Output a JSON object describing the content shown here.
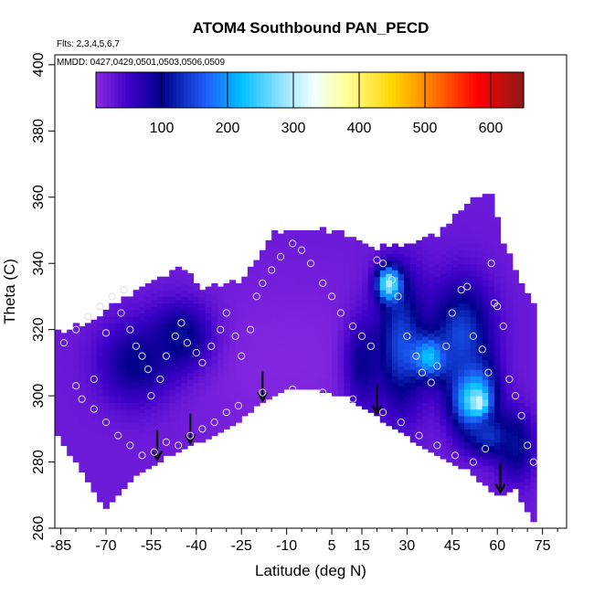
{
  "chart_data": {
    "type": "heatmap",
    "title": "ATOM4 Southbound PAN_PECD",
    "subtitle_lines": [
      "Flts: 2,3,4,5,6,7",
      "MMDD: 0427,0429,0501,0503,0506,0509"
    ],
    "xlabel": "Latitude (deg N)",
    "ylabel": "Theta (C)",
    "xlim": [
      -87,
      83
    ],
    "ylim": [
      260,
      403
    ],
    "x_ticks": [
      -85,
      -70,
      -55,
      -40,
      -25,
      -10,
      5,
      15,
      30,
      45,
      60,
      75
    ],
    "x_tick_labels": [
      "-85",
      "-70",
      "-55",
      "-40",
      "-25",
      "-10",
      "5",
      "15",
      "30",
      "45",
      "60",
      "75"
    ],
    "x_minor_ticks": [
      -80,
      -75,
      -65,
      -60,
      -50,
      -45,
      -35,
      -30,
      -20,
      -15,
      -5,
      0,
      10,
      20,
      25,
      35,
      40,
      50,
      55,
      65,
      70,
      80
    ],
    "y_ticks": [
      260,
      280,
      300,
      320,
      340,
      360,
      380,
      400
    ],
    "y_tick_labels": [
      "260",
      "280",
      "300",
      "320",
      "340",
      "360",
      "380",
      "400"
    ],
    "colorbar": {
      "range": [
        0,
        650
      ],
      "ticks": [
        100,
        200,
        300,
        400,
        500,
        600
      ],
      "tick_labels": [
        "100",
        "200",
        "300",
        "400",
        "500",
        "600"
      ],
      "stops": [
        {
          "v": 0,
          "color": "#8a2be2"
        },
        {
          "v": 50,
          "color": "#3d00c8"
        },
        {
          "v": 100,
          "color": "#00008b"
        },
        {
          "v": 170,
          "color": "#1e64ff"
        },
        {
          "v": 220,
          "color": "#00bfff"
        },
        {
          "v": 290,
          "color": "#a6e6ff"
        },
        {
          "v": 330,
          "color": "#f0ffff"
        },
        {
          "v": 380,
          "color": "#ffff99"
        },
        {
          "v": 450,
          "color": "#ffd700"
        },
        {
          "v": 500,
          "color": "#ff8c00"
        },
        {
          "v": 580,
          "color": "#ff0000"
        },
        {
          "v": 650,
          "color": "#8b1a1a"
        }
      ]
    },
    "top_boundary": [
      [
        -87,
        318
      ],
      [
        -75,
        322
      ],
      [
        -65,
        328
      ],
      [
        -55,
        334
      ],
      [
        -45,
        338
      ],
      [
        -38,
        332
      ],
      [
        -25,
        334
      ],
      [
        -15,
        348
      ],
      [
        -5,
        350
      ],
      [
        10,
        348
      ],
      [
        20,
        344
      ],
      [
        30,
        345
      ],
      [
        40,
        348
      ],
      [
        50,
        358
      ],
      [
        58,
        360
      ],
      [
        62,
        345
      ],
      [
        70,
        330
      ],
      [
        73,
        325
      ]
    ],
    "bottom_boundary": [
      [
        -87,
        290
      ],
      [
        -80,
        280
      ],
      [
        -70,
        266
      ],
      [
        -60,
        276
      ],
      [
        -50,
        282
      ],
      [
        -40,
        286
      ],
      [
        -30,
        290
      ],
      [
        -20,
        297
      ],
      [
        -10,
        302
      ],
      [
        0,
        302
      ],
      [
        10,
        300
      ],
      [
        20,
        294
      ],
      [
        30,
        288
      ],
      [
        40,
        282
      ],
      [
        50,
        278
      ],
      [
        60,
        270
      ],
      [
        66,
        272
      ],
      [
        72,
        262
      ],
      [
        73,
        264
      ]
    ],
    "field_blobs": [
      {
        "x": -10,
        "y": 310,
        "sx": 40,
        "sy": 25,
        "v": 5
      },
      {
        "x": -60,
        "y": 310,
        "sx": 12,
        "sy": 12,
        "v": 100
      },
      {
        "x": -45,
        "y": 318,
        "sx": 10,
        "sy": 10,
        "v": 110
      },
      {
        "x": 15,
        "y": 310,
        "sx": 6,
        "sy": 14,
        "v": 90
      },
      {
        "x": 28,
        "y": 316,
        "sx": 8,
        "sy": 20,
        "v": 150
      },
      {
        "x": 24,
        "y": 334,
        "sx": 4,
        "sy": 5,
        "v": 300
      },
      {
        "x": 38,
        "y": 312,
        "sx": 6,
        "sy": 6,
        "v": 260
      },
      {
        "x": 52,
        "y": 300,
        "sx": 7,
        "sy": 10,
        "v": 290
      },
      {
        "x": 54,
        "y": 298,
        "sx": 2.5,
        "sy": 3,
        "v": 360
      },
      {
        "x": 48,
        "y": 318,
        "sx": 10,
        "sy": 16,
        "v": 150
      },
      {
        "x": 58,
        "y": 288,
        "sx": 8,
        "sy": 6,
        "v": 140
      },
      {
        "x": 66,
        "y": 285,
        "sx": 6,
        "sy": 10,
        "v": 110
      }
    ],
    "points": [
      [
        -84,
        316
      ],
      [
        -80,
        320
      ],
      [
        -76,
        324
      ],
      [
        -72,
        327
      ],
      [
        -68,
        330
      ],
      [
        -65,
        325
      ],
      [
        -62,
        320
      ],
      [
        -60,
        315
      ],
      [
        -58,
        312
      ],
      [
        -56,
        308
      ],
      [
        -55,
        300
      ],
      [
        -52,
        305
      ],
      [
        -50,
        312
      ],
      [
        -47,
        318
      ],
      [
        -45,
        322
      ],
      [
        -43,
        316
      ],
      [
        -40,
        313
      ],
      [
        -38,
        310
      ],
      [
        -35,
        315
      ],
      [
        -32,
        320
      ],
      [
        -30,
        325
      ],
      [
        -27,
        318
      ],
      [
        -25,
        312
      ],
      [
        -22,
        320
      ],
      [
        -20,
        330
      ],
      [
        -18,
        334
      ],
      [
        -15,
        338
      ],
      [
        -12,
        342
      ],
      [
        -8,
        346
      ],
      [
        -5,
        344
      ],
      [
        -2,
        340
      ],
      [
        2,
        334
      ],
      [
        5,
        330
      ],
      [
        8,
        325
      ],
      [
        12,
        321
      ],
      [
        15,
        318
      ],
      [
        18,
        315
      ],
      [
        20,
        341
      ],
      [
        22,
        340
      ],
      [
        25,
        335
      ],
      [
        27,
        330
      ],
      [
        30,
        318
      ],
      [
        33,
        312
      ],
      [
        35,
        307
      ],
      [
        38,
        304
      ],
      [
        40,
        309
      ],
      [
        43,
        315
      ],
      [
        45,
        325
      ],
      [
        48,
        332
      ],
      [
        50,
        333
      ],
      [
        52,
        318
      ],
      [
        55,
        314
      ],
      [
        57,
        307
      ],
      [
        58,
        340
      ],
      [
        59,
        328
      ],
      [
        60,
        327
      ],
      [
        62,
        321
      ],
      [
        64,
        305
      ],
      [
        66,
        300
      ],
      [
        68,
        294
      ],
      [
        70,
        285
      ],
      [
        72,
        280
      ],
      [
        -78,
        299
      ],
      [
        -74,
        296
      ],
      [
        -70,
        292
      ],
      [
        -66,
        288
      ],
      [
        -62,
        285
      ],
      [
        -58,
        282
      ],
      [
        -54,
        283
      ],
      [
        -50,
        286
      ],
      [
        -46,
        285
      ],
      [
        -42,
        288
      ],
      [
        -38,
        290
      ],
      [
        -34,
        292
      ],
      [
        -30,
        295
      ],
      [
        -26,
        297
      ],
      [
        -18,
        301
      ],
      [
        -8,
        302
      ],
      [
        2,
        301
      ],
      [
        12,
        299
      ],
      [
        22,
        295
      ],
      [
        28,
        292
      ],
      [
        34,
        288
      ],
      [
        40,
        285
      ],
      [
        46,
        282
      ],
      [
        52,
        280
      ],
      [
        56,
        284
      ],
      [
        -64,
        332
      ],
      [
        -70,
        319
      ],
      [
        -74,
        305
      ],
      [
        -80,
        303
      ]
    ],
    "arrows_x": [
      -53,
      -42,
      -18,
      20,
      61
    ]
  }
}
